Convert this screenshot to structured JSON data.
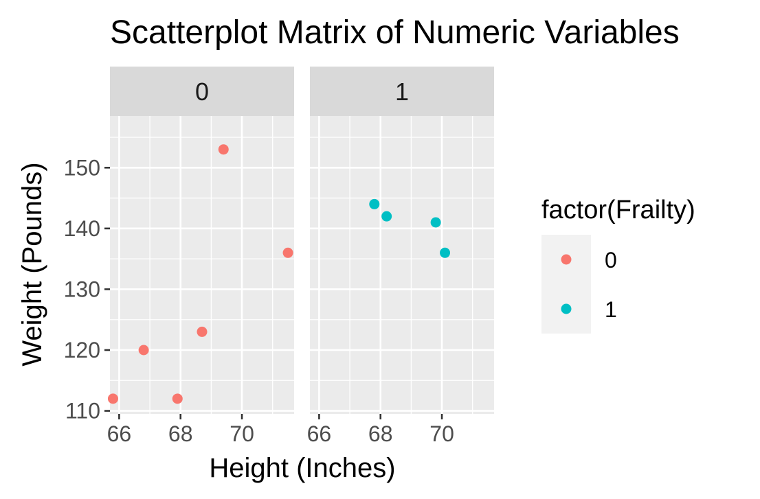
{
  "chart_data": {
    "type": "scatter",
    "title": "Scatterplot Matrix of Numeric Variables",
    "xlabel": "Height (Inches)",
    "ylabel": "Weight (Pounds)",
    "xlim": [
      65.7,
      71.7
    ],
    "ylim": [
      109.5,
      158.5
    ],
    "x_ticks": [
      66,
      68,
      70
    ],
    "y_ticks": [
      110,
      120,
      130,
      140,
      150
    ],
    "grid": true,
    "legend_position": "right",
    "legend": {
      "title": "factor(Frailty)",
      "entries": [
        {
          "label": "0",
          "color": "#F8766D"
        },
        {
          "label": "1",
          "color": "#00BFC4"
        }
      ]
    },
    "panels": [
      {
        "label": "0",
        "color": "#F8766D",
        "points": [
          {
            "x": 65.8,
            "y": 112
          },
          {
            "x": 66.8,
            "y": 120
          },
          {
            "x": 67.9,
            "y": 112
          },
          {
            "x": 68.7,
            "y": 123
          },
          {
            "x": 69.4,
            "y": 153
          },
          {
            "x": 71.5,
            "y": 136
          }
        ]
      },
      {
        "label": "1",
        "color": "#00BFC4",
        "points": [
          {
            "x": 67.8,
            "y": 144
          },
          {
            "x": 68.2,
            "y": 142
          },
          {
            "x": 69.8,
            "y": 141
          },
          {
            "x": 70.1,
            "y": 136
          }
        ]
      }
    ]
  }
}
